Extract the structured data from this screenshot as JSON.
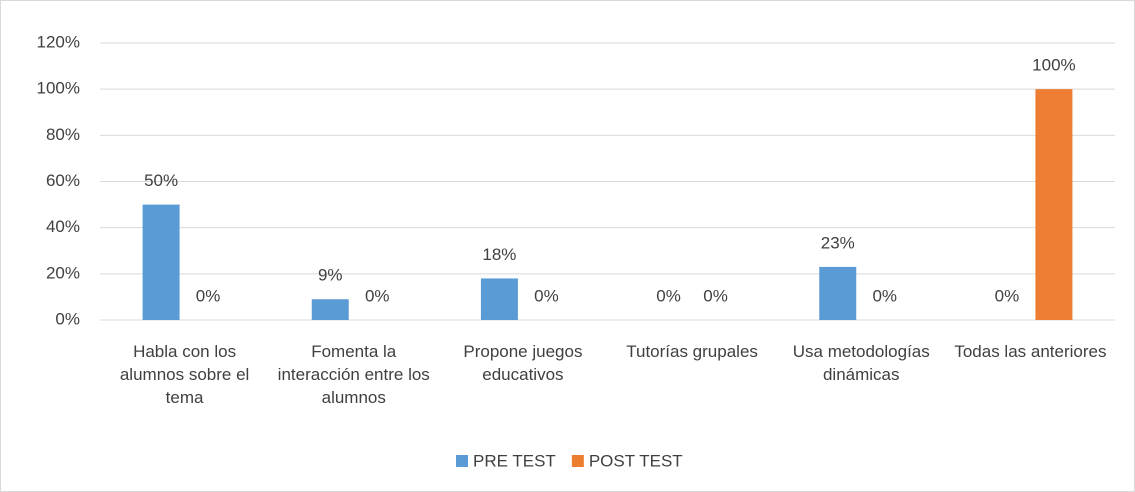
{
  "chart_data": {
    "type": "bar",
    "categories": [
      "Habla con los alumnos sobre el tema",
      "Fomenta la interacción entre los alumnos",
      "Propone juegos educativos",
      "Tutorías grupales",
      "Usa metodologías dinámicas",
      "Todas las anteriores"
    ],
    "series": [
      {
        "name": "PRE TEST",
        "color": "#5b9bd5",
        "values": [
          50,
          9,
          18,
          0,
          23,
          0
        ],
        "value_labels": [
          "50%",
          "9%",
          "18%",
          "0%",
          "23%",
          "0%"
        ]
      },
      {
        "name": "POST TEST",
        "color": "#ed7d31",
        "values": [
          0,
          0,
          0,
          0,
          0,
          100
        ],
        "value_labels": [
          "0%",
          "0%",
          "0%",
          "0%",
          "0%",
          "100%"
        ]
      }
    ],
    "ylim": [
      0,
      120
    ],
    "yticks": [
      {
        "value": 0,
        "label": "0%"
      },
      {
        "value": 20,
        "label": "20%"
      },
      {
        "value": 40,
        "label": "40%"
      },
      {
        "value": 60,
        "label": "60%"
      },
      {
        "value": 80,
        "label": "80%"
      },
      {
        "value": 100,
        "label": "100%"
      },
      {
        "value": 120,
        "label": "120%"
      }
    ],
    "grid": true,
    "legend": "bottom"
  }
}
